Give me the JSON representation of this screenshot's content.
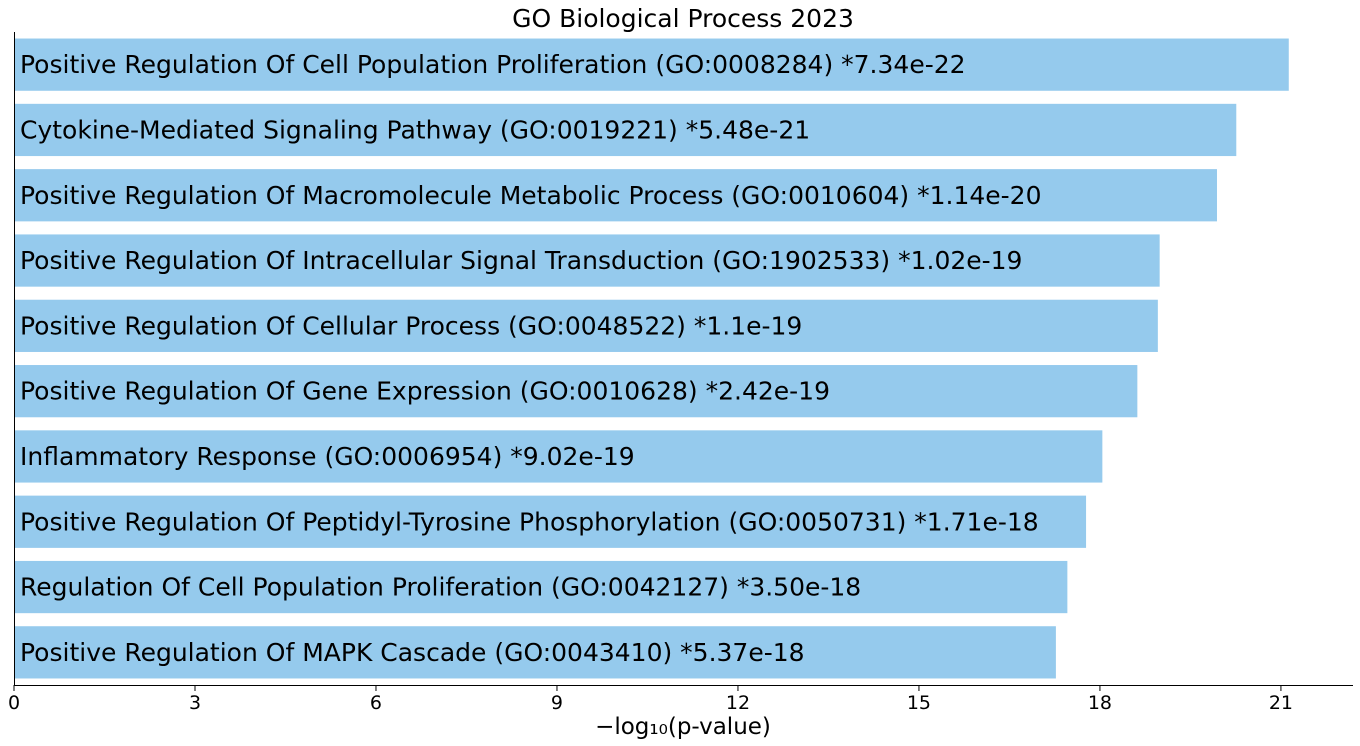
{
  "chart_data": {
    "type": "bar",
    "orientation": "horizontal",
    "title": "GO Biological Process 2023",
    "xlabel": "−log₁₀(p-value)",
    "ylabel": "",
    "xlim": [
      0,
      22.2
    ],
    "xticks": [
      0,
      3,
      6,
      9,
      12,
      15,
      18,
      21
    ],
    "grid": false,
    "bar_color": "#95caed",
    "categories": [
      "Positive Regulation Of Cell Population Proliferation (GO:0008284)",
      "Cytokine-Mediated Signaling Pathway (GO:0019221)",
      "Positive Regulation Of Macromolecule Metabolic Process (GO:0010604)",
      "Positive Regulation Of Intracellular Signal Transduction (GO:1902533)",
      "Positive Regulation Of Cellular Process (GO:0048522)",
      "Positive Regulation Of Gene Expression (GO:0010628)",
      "Inflammatory Response (GO:0006954)",
      "Positive Regulation Of Peptidyl-Tyrosine Phosphorylation (GO:0050731)",
      "Regulation Of Cell Population Proliferation (GO:0042127)",
      "Positive Regulation Of MAPK Cascade (GO:0043410)"
    ],
    "values": [
      21.13,
      20.26,
      19.94,
      18.99,
      18.96,
      18.62,
      18.04,
      17.77,
      17.46,
      17.27
    ],
    "pvalue_labels": [
      "*7.34e-22",
      "*5.48e-21",
      "*1.14e-20",
      "*1.02e-19",
      "*1.1e-19",
      "*2.42e-19",
      "*9.02e-19",
      "*1.71e-18",
      "*3.50e-18",
      "*5.37e-18"
    ]
  }
}
